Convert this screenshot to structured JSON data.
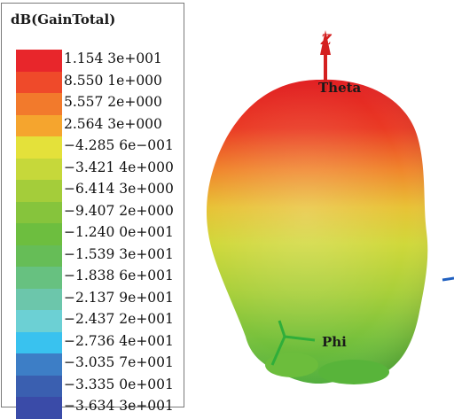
{
  "legend": {
    "title": "dB(GainTotal)",
    "entries": [
      {
        "label": "1.154 3e+001",
        "color": "#e8262b"
      },
      {
        "label": "8.550 1e+000",
        "color": "#ef4a2a"
      },
      {
        "label": "5.557 2e+000",
        "color": "#f27a2c"
      },
      {
        "label": "2.564 3e+000",
        "color": "#f5a52e"
      },
      {
        "label": "−4.285 6e−001",
        "color": "#e4e13a"
      },
      {
        "label": "−3.421 4e+000",
        "color": "#c6d83a"
      },
      {
        "label": "−6.414 3e+000",
        "color": "#a4cd3a"
      },
      {
        "label": "−9.407 2e+000",
        "color": "#86c43c"
      },
      {
        "label": "−1.240 0e+001",
        "color": "#6dbe3f"
      },
      {
        "label": "−1.539 3e+001",
        "color": "#66bd57"
      },
      {
        "label": "−1.838 6e+001",
        "color": "#67c180"
      },
      {
        "label": "−2.137 9e+001",
        "color": "#6cc6ab"
      },
      {
        "label": "−2.437 2e+001",
        "color": "#6cd0d4"
      },
      {
        "label": "−2.736 4e+001",
        "color": "#39c2ef"
      },
      {
        "label": "−3.035 7e+001",
        "color": "#3d7ec6"
      },
      {
        "label": "−3.335 0e+001",
        "color": "#3a5fb0"
      },
      {
        "label": "−3.634 3e+001",
        "color": "#3a4ba8"
      }
    ]
  },
  "plot": {
    "z_axis_label": "Z",
    "theta_label": "Theta",
    "phi_label": "Phi",
    "z_axis_color": "#d42020",
    "phi_axis_color": "#2fae3a",
    "x_axis_color": "#2060c0"
  }
}
